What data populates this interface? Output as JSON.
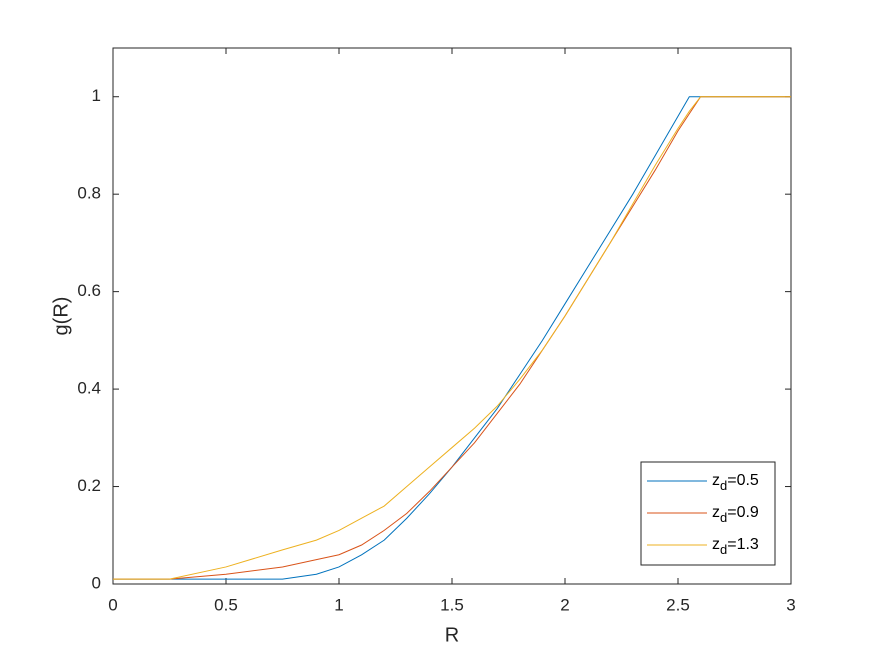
{
  "chart_data": {
    "type": "line",
    "xlabel": "R",
    "ylabel": "g(R)",
    "x": [
      0,
      0.25,
      0.5,
      0.75,
      0.9,
      1,
      1.1,
      1.2,
      1.3,
      1.4,
      1.5,
      1.6,
      1.7,
      1.8,
      1.9,
      2,
      2.1,
      2.2,
      2.3,
      2.4,
      2.5,
      2.55,
      2.6,
      3
    ],
    "series": [
      {
        "name": "zd=0.5",
        "color": "#0072bd",
        "values": [
          0.01,
          0.01,
          0.01,
          0.01,
          0.02,
          0.035,
          0.06,
          0.09,
          0.135,
          0.185,
          0.24,
          0.3,
          0.36,
          0.43,
          0.5,
          0.575,
          0.65,
          0.725,
          0.8,
          0.88,
          0.96,
          1,
          1,
          1
        ]
      },
      {
        "name": "zd=0.9",
        "color": "#d95319",
        "values": [
          0.01,
          0.01,
          0.02,
          0.035,
          0.05,
          0.06,
          0.08,
          0.11,
          0.145,
          0.19,
          0.24,
          0.29,
          0.35,
          0.41,
          0.48,
          0.55,
          0.625,
          0.7,
          0.775,
          0.85,
          0.93,
          0.965,
          1,
          1
        ]
      },
      {
        "name": "zd=1.3",
        "color": "#edb120",
        "values": [
          0.01,
          0.01,
          0.035,
          0.07,
          0.09,
          0.11,
          0.135,
          0.16,
          0.2,
          0.24,
          0.28,
          0.32,
          0.365,
          0.42,
          0.48,
          0.55,
          0.625,
          0.7,
          0.78,
          0.86,
          0.935,
          0.97,
          1,
          1
        ]
      }
    ],
    "xlim": [
      0,
      3
    ],
    "xticks": [
      0,
      0.5,
      1,
      1.5,
      2,
      2.5,
      3
    ],
    "ylim": [
      0,
      1.1
    ],
    "yticks": [
      0,
      0.2,
      0.4,
      0.6,
      0.8,
      1
    ],
    "legend": "lower right"
  }
}
